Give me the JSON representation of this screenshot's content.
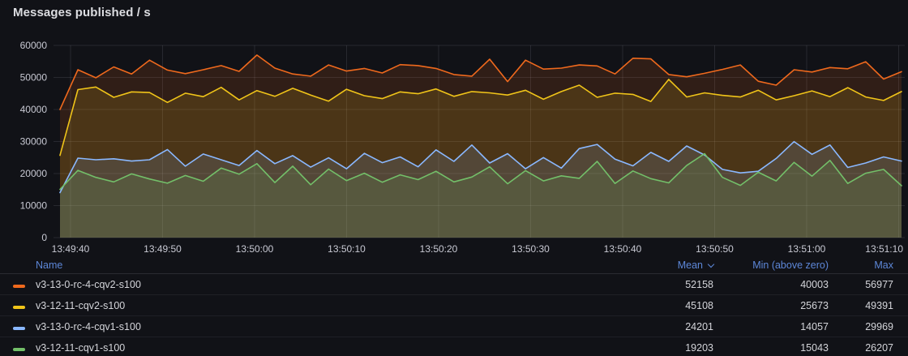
{
  "panel": {
    "title": "Messages published / s"
  },
  "chart_data": {
    "type": "line",
    "title": "Messages published / s",
    "ylim": [
      0,
      60000
    ],
    "y_ticks": [
      0,
      10000,
      20000,
      30000,
      40000,
      50000,
      60000
    ],
    "x_tick_labels": [
      "13:49:40",
      "13:49:50",
      "13:50:00",
      "13:50:10",
      "13:50:20",
      "13:50:30",
      "13:50:40",
      "13:50:50",
      "13:51:00",
      "13:51:10"
    ],
    "grid": true,
    "legend_position": "bottom-table",
    "fill_opacity": 0.14,
    "series": [
      {
        "name": "v3-13-0-rc-4-cqv2-s100",
        "color": "#EF691D",
        "mean": 52158,
        "min_above_zero": 40003,
        "max": 56977,
        "values": [
          40003,
          52400,
          49900,
          53300,
          51100,
          55400,
          52300,
          51200,
          52400,
          53700,
          51900,
          56977,
          52900,
          51100,
          50400,
          53900,
          52000,
          52800,
          51400,
          54000,
          53700,
          52800,
          50900,
          50400,
          55700,
          48700,
          55400,
          52600,
          52900,
          53900,
          53600,
          51100,
          56000,
          55800,
          50900,
          50200,
          51300,
          52500,
          53900,
          48800,
          47600,
          52400,
          51700,
          53100,
          52700,
          54900,
          49500,
          51800
        ]
      },
      {
        "name": "v3-12-11-cqv2-s100",
        "color": "#F0C419",
        "mean": 45108,
        "min_above_zero": 25673,
        "max": 49391,
        "values": [
          25673,
          46200,
          47000,
          43800,
          45500,
          45300,
          42200,
          45100,
          44000,
          46900,
          43000,
          45900,
          44100,
          46600,
          44500,
          42600,
          46300,
          44300,
          43400,
          45500,
          44900,
          46400,
          44100,
          45600,
          45200,
          44500,
          46000,
          43200,
          45600,
          47600,
          43800,
          45100,
          44700,
          42500,
          49391,
          43900,
          45200,
          44400,
          43900,
          46000,
          43000,
          44300,
          45800,
          44000,
          46800,
          43900,
          42800,
          45600
        ]
      },
      {
        "name": "v3-13-0-rc-4-cqv1-s100",
        "color": "#8AB8FF",
        "mean": 24201,
        "min_above_zero": 14057,
        "max": 29969,
        "values": [
          14057,
          24800,
          24300,
          24600,
          23900,
          24300,
          27500,
          22300,
          26100,
          24300,
          22500,
          27200,
          23100,
          25600,
          22000,
          24900,
          21500,
          26300,
          23400,
          25200,
          22100,
          27400,
          23800,
          28900,
          23300,
          26200,
          21500,
          25000,
          21700,
          27800,
          29100,
          24500,
          22400,
          26600,
          23800,
          28600,
          25800,
          21300,
          20200,
          20700,
          24700,
          29969,
          26000,
          28900,
          21900,
          23300,
          25200,
          23900
        ]
      },
      {
        "name": "v3-12-11-cqv1-s100",
        "color": "#73BF69",
        "mean": 19203,
        "min_above_zero": 15043,
        "max": 26207,
        "values": [
          15043,
          21000,
          18800,
          17400,
          19900,
          18300,
          17000,
          19400,
          17600,
          21700,
          19800,
          23100,
          17200,
          22300,
          16500,
          21400,
          17800,
          20100,
          17300,
          19600,
          18100,
          20700,
          17400,
          18900,
          22100,
          16800,
          20900,
          17700,
          19300,
          18500,
          23800,
          16900,
          20800,
          18400,
          17100,
          22500,
          26207,
          18800,
          16300,
          20400,
          17700,
          23500,
          19200,
          24100,
          16900,
          20100,
          21300,
          16200
        ]
      }
    ]
  },
  "legend_table": {
    "columns": {
      "name": "Name",
      "mean": "Mean",
      "min": "Min (above zero)",
      "max": "Max"
    },
    "sorted_by": "mean",
    "rows": [
      {
        "name": "v3-13-0-rc-4-cqv2-s100",
        "color": "#EF691D",
        "mean": "52158",
        "min": "40003",
        "max": "56977"
      },
      {
        "name": "v3-12-11-cqv2-s100",
        "color": "#F0C419",
        "mean": "45108",
        "min": "25673",
        "max": "49391"
      },
      {
        "name": "v3-13-0-rc-4-cqv1-s100",
        "color": "#8AB8FF",
        "mean": "24201",
        "min": "14057",
        "max": "29969"
      },
      {
        "name": "v3-12-11-cqv1-s100",
        "color": "#73BF69",
        "mean": "19203",
        "min": "15043",
        "max": "26207"
      }
    ]
  },
  "colors": {
    "background": "#111217",
    "grid": "rgba(204,204,220,0.12)",
    "tick_text": "#C8C9D3",
    "header_link": "#5D87D8",
    "title_text": "#DCDDE1"
  }
}
